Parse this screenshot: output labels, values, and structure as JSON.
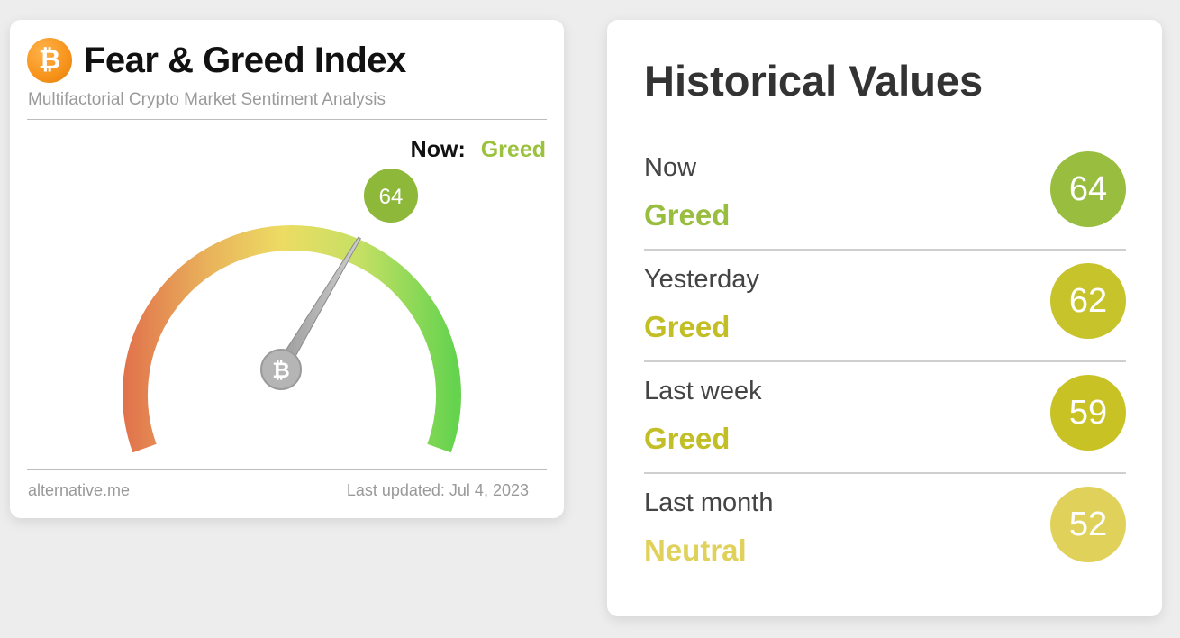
{
  "fear_greed": {
    "logo_glyph": "₿",
    "title": "Fear & Greed Index",
    "subtitle": "Multifactorial Crypto Market Sentiment Analysis",
    "now_label": "Now:",
    "now_classification": "Greed",
    "value": 64,
    "value_text": "64",
    "needle_glyph": "₿",
    "source": "alternative.me",
    "last_updated": "Last updated: Jul 4, 2023",
    "colors": {
      "greed": "#9ac23e",
      "badge": "#8db83a",
      "logo": "#f7931a"
    }
  },
  "historical": {
    "title": "Historical Values",
    "rows": [
      {
        "period": "Now",
        "classification": "Greed",
        "value": "64",
        "color": "#98bd3f",
        "text_color": "#98bd3f"
      },
      {
        "period": "Yesterday",
        "classification": "Greed",
        "value": "62",
        "color": "#c7c32b",
        "text_color": "#c2be26"
      },
      {
        "period": "Last week",
        "classification": "Greed",
        "value": "59",
        "color": "#c8c225",
        "text_color": "#c2be26"
      },
      {
        "period": "Last month",
        "classification": "Neutral",
        "value": "52",
        "color": "#e0d15a",
        "text_color": "#e0d15a"
      }
    ]
  }
}
